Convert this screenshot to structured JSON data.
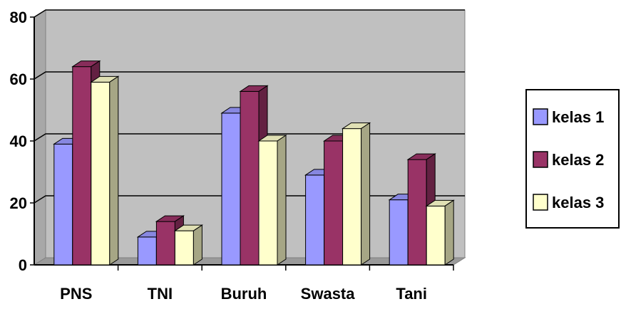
{
  "chart_data": {
    "type": "bar",
    "style": "3d-clustered-column",
    "title": "",
    "xlabel": "",
    "ylabel": "",
    "categories": [
      "PNS",
      "TNI",
      "Buruh",
      "Swasta",
      "Tani"
    ],
    "series": [
      {
        "name": "kelas 1",
        "values": [
          39,
          9,
          49,
          29,
          21
        ],
        "color": "#9999FF"
      },
      {
        "name": "kelas 2",
        "values": [
          64,
          14,
          56,
          40,
          34
        ],
        "color": "#993366"
      },
      {
        "name": "kelas 3",
        "values": [
          59,
          11,
          40,
          44,
          19
        ],
        "color": "#FFFFCC"
      }
    ],
    "ylim": [
      0,
      80
    ],
    "yticks": [
      0,
      20,
      40,
      60,
      80
    ],
    "grid": true,
    "plot_background": "#C0C0C0",
    "legend": {
      "placement": "right"
    }
  }
}
